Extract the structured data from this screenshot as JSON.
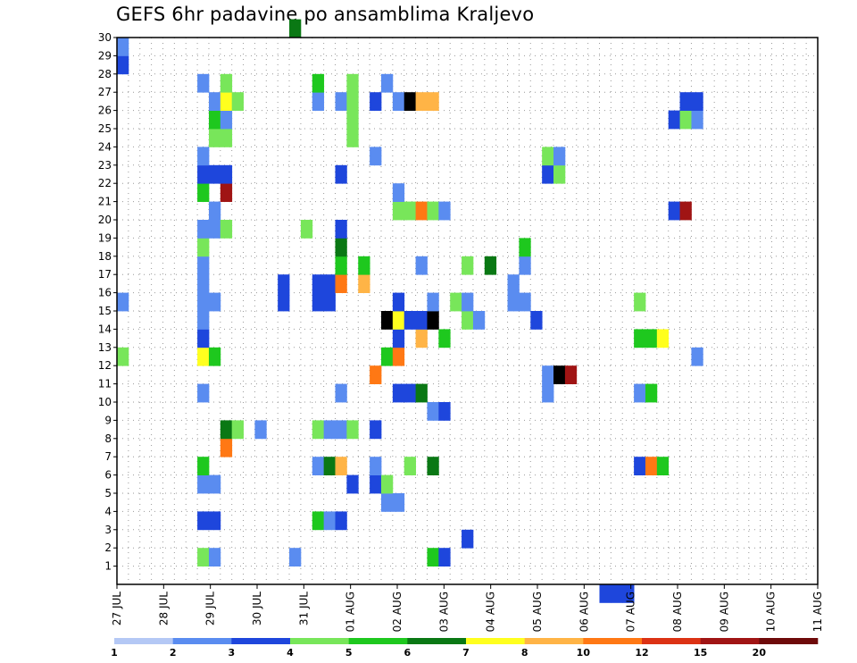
{
  "chart_data": {
    "type": "heatmap",
    "title": "GEFS 6hr padavine po ansamblima Kraljevo",
    "x_ticks": [
      "27 JUL",
      "28 JUL",
      "29 JUL",
      "30 JUL",
      "31 JUL",
      "01 AUG",
      "02 AUG",
      "03 AUG",
      "04 AUG",
      "05 AUG",
      "06 AUG",
      "07 AUG",
      "08 AUG",
      "09 AUG",
      "10 AUG",
      "11 AUG"
    ],
    "y_ticks": [
      "1",
      "2",
      "3",
      "4",
      "5",
      "6",
      "7",
      "8",
      "9",
      "10",
      "11",
      "12",
      "13",
      "14",
      "15",
      "16",
      "17",
      "18",
      "19",
      "20",
      "21",
      "22",
      "23",
      "24",
      "25",
      "26",
      "27",
      "28",
      "29",
      "30"
    ],
    "x_range": [
      0,
      61
    ],
    "y_range": [
      0,
      30
    ],
    "grid": true,
    "colorbar": {
      "placement": "bottom",
      "labels": [
        "1",
        "2",
        "3",
        "4",
        "5",
        "6",
        "7",
        "8",
        "10",
        "12",
        "15",
        "20"
      ],
      "colors": [
        "#b4c8f5",
        "#5a8cf0",
        "#1e46dc",
        "#78e65a",
        "#1ec81e",
        "#0a7814",
        "#ffff1e",
        "#ffb446",
        "#ff7814",
        "#dc3214",
        "#a01414",
        "#6e0a0a"
      ]
    },
    "cells": [
      [
        0,
        12,
        3
      ],
      [
        0,
        15,
        1
      ],
      [
        0,
        28,
        2
      ],
      [
        0,
        29,
        1
      ],
      [
        7,
        1,
        3
      ],
      [
        7,
        3,
        2
      ],
      [
        7,
        5,
        1
      ],
      [
        7,
        6,
        4
      ],
      [
        7,
        10,
        1
      ],
      [
        7,
        12,
        6
      ],
      [
        7,
        13,
        2
      ],
      [
        7,
        14,
        1
      ],
      [
        7,
        15,
        1
      ],
      [
        7,
        16,
        1
      ],
      [
        7,
        17,
        1
      ],
      [
        7,
        18,
        3
      ],
      [
        7,
        19,
        1
      ],
      [
        7,
        21,
        4
      ],
      [
        7,
        22,
        2
      ],
      [
        7,
        23,
        1
      ],
      [
        7,
        27,
        1
      ],
      [
        8,
        1,
        1
      ],
      [
        8,
        3,
        2
      ],
      [
        8,
        5,
        1
      ],
      [
        8,
        12,
        4
      ],
      [
        8,
        15,
        1
      ],
      [
        8,
        19,
        1
      ],
      [
        8,
        20,
        1
      ],
      [
        8,
        22,
        2
      ],
      [
        8,
        24,
        3
      ],
      [
        8,
        25,
        4
      ],
      [
        8,
        26,
        1
      ],
      [
        9,
        7,
        8
      ],
      [
        9,
        8,
        5
      ],
      [
        9,
        19,
        3
      ],
      [
        9,
        21,
        10
      ],
      [
        9,
        22,
        2
      ],
      [
        9,
        24,
        3
      ],
      [
        9,
        25,
        1
      ],
      [
        9,
        26,
        6
      ],
      [
        9,
        27,
        3
      ],
      [
        10,
        8,
        3
      ],
      [
        10,
        26,
        3
      ],
      [
        12,
        8,
        1
      ],
      [
        14,
        15,
        2
      ],
      [
        14,
        16,
        2
      ],
      [
        15,
        1,
        1
      ],
      [
        15,
        30,
        5
      ],
      [
        16,
        19,
        3
      ],
      [
        17,
        3,
        4
      ],
      [
        17,
        6,
        1
      ],
      [
        17,
        8,
        3
      ],
      [
        17,
        15,
        2
      ],
      [
        17,
        16,
        2
      ],
      [
        17,
        26,
        1
      ],
      [
        17,
        27,
        4
      ],
      [
        18,
        3,
        1
      ],
      [
        18,
        6,
        5
      ],
      [
        18,
        8,
        1
      ],
      [
        18,
        15,
        2
      ],
      [
        18,
        16,
        2
      ],
      [
        19,
        3,
        2
      ],
      [
        19,
        6,
        7
      ],
      [
        19,
        8,
        1
      ],
      [
        19,
        10,
        1
      ],
      [
        19,
        16,
        8
      ],
      [
        19,
        17,
        4
      ],
      [
        19,
        18,
        5
      ],
      [
        19,
        19,
        2
      ],
      [
        19,
        22,
        2
      ],
      [
        19,
        26,
        1
      ],
      [
        20,
        5,
        2
      ],
      [
        20,
        8,
        3
      ],
      [
        20,
        24,
        3
      ],
      [
        20,
        25,
        3
      ],
      [
        20,
        26,
        3
      ],
      [
        20,
        27,
        3
      ],
      [
        21,
        16,
        7
      ],
      [
        21,
        17,
        4
      ],
      [
        22,
        5,
        2
      ],
      [
        22,
        6,
        1
      ],
      [
        22,
        8,
        2
      ],
      [
        22,
        11,
        8
      ],
      [
        22,
        23,
        1
      ],
      [
        22,
        26,
        2
      ],
      [
        23,
        4,
        1
      ],
      [
        23,
        5,
        3
      ],
      [
        23,
        12,
        4
      ],
      [
        23,
        14,
        12
      ],
      [
        23,
        27,
        1
      ],
      [
        24,
        4,
        1
      ],
      [
        24,
        10,
        2
      ],
      [
        24,
        12,
        8
      ],
      [
        24,
        13,
        2
      ],
      [
        24,
        14,
        6
      ],
      [
        24,
        15,
        2
      ],
      [
        24,
        20,
        3
      ],
      [
        24,
        21,
        1
      ],
      [
        24,
        26,
        1
      ],
      [
        25,
        6,
        3
      ],
      [
        25,
        10,
        2
      ],
      [
        25,
        14,
        2
      ],
      [
        25,
        20,
        3
      ],
      [
        25,
        26,
        12
      ],
      [
        26,
        10,
        5
      ],
      [
        26,
        13,
        7
      ],
      [
        26,
        14,
        2
      ],
      [
        26,
        17,
        1
      ],
      [
        26,
        20,
        8
      ],
      [
        26,
        26,
        7
      ],
      [
        27,
        1,
        4
      ],
      [
        27,
        6,
        5
      ],
      [
        27,
        9,
        1
      ],
      [
        27,
        14,
        12
      ],
      [
        27,
        15,
        1
      ],
      [
        27,
        20,
        3
      ],
      [
        27,
        26,
        7
      ],
      [
        28,
        1,
        2
      ],
      [
        28,
        9,
        2
      ],
      [
        28,
        13,
        4
      ],
      [
        28,
        20,
        1
      ],
      [
        29,
        15,
        3
      ],
      [
        30,
        2,
        2
      ],
      [
        30,
        14,
        3
      ],
      [
        30,
        15,
        1
      ],
      [
        30,
        17,
        3
      ],
      [
        31,
        14,
        1
      ],
      [
        32,
        17,
        5
      ],
      [
        34,
        15,
        1
      ],
      [
        34,
        16,
        1
      ],
      [
        35,
        15,
        1
      ],
      [
        35,
        17,
        1
      ],
      [
        35,
        18,
        4
      ],
      [
        36,
        14,
        2
      ],
      [
        37,
        10,
        1
      ],
      [
        37,
        11,
        1
      ],
      [
        37,
        22,
        2
      ],
      [
        37,
        23,
        3
      ],
      [
        38,
        11,
        12
      ],
      [
        38,
        22,
        3
      ],
      [
        38,
        23,
        1
      ],
      [
        39,
        11,
        10
      ],
      [
        42,
        -1,
        2
      ],
      [
        43,
        -1,
        2
      ],
      [
        44,
        -1,
        2
      ],
      [
        45,
        6,
        2
      ],
      [
        45,
        10,
        1
      ],
      [
        45,
        13,
        4
      ],
      [
        45,
        15,
        3
      ],
      [
        46,
        6,
        8
      ],
      [
        46,
        10,
        4
      ],
      [
        46,
        13,
        4
      ],
      [
        47,
        6,
        4
      ],
      [
        47,
        13,
        6
      ],
      [
        48,
        20,
        2
      ],
      [
        48,
        25,
        2
      ],
      [
        49,
        20,
        10
      ],
      [
        49,
        25,
        3
      ],
      [
        49,
        26,
        2
      ],
      [
        50,
        12,
        1
      ],
      [
        50,
        25,
        1
      ],
      [
        50,
        26,
        2
      ]
    ]
  }
}
